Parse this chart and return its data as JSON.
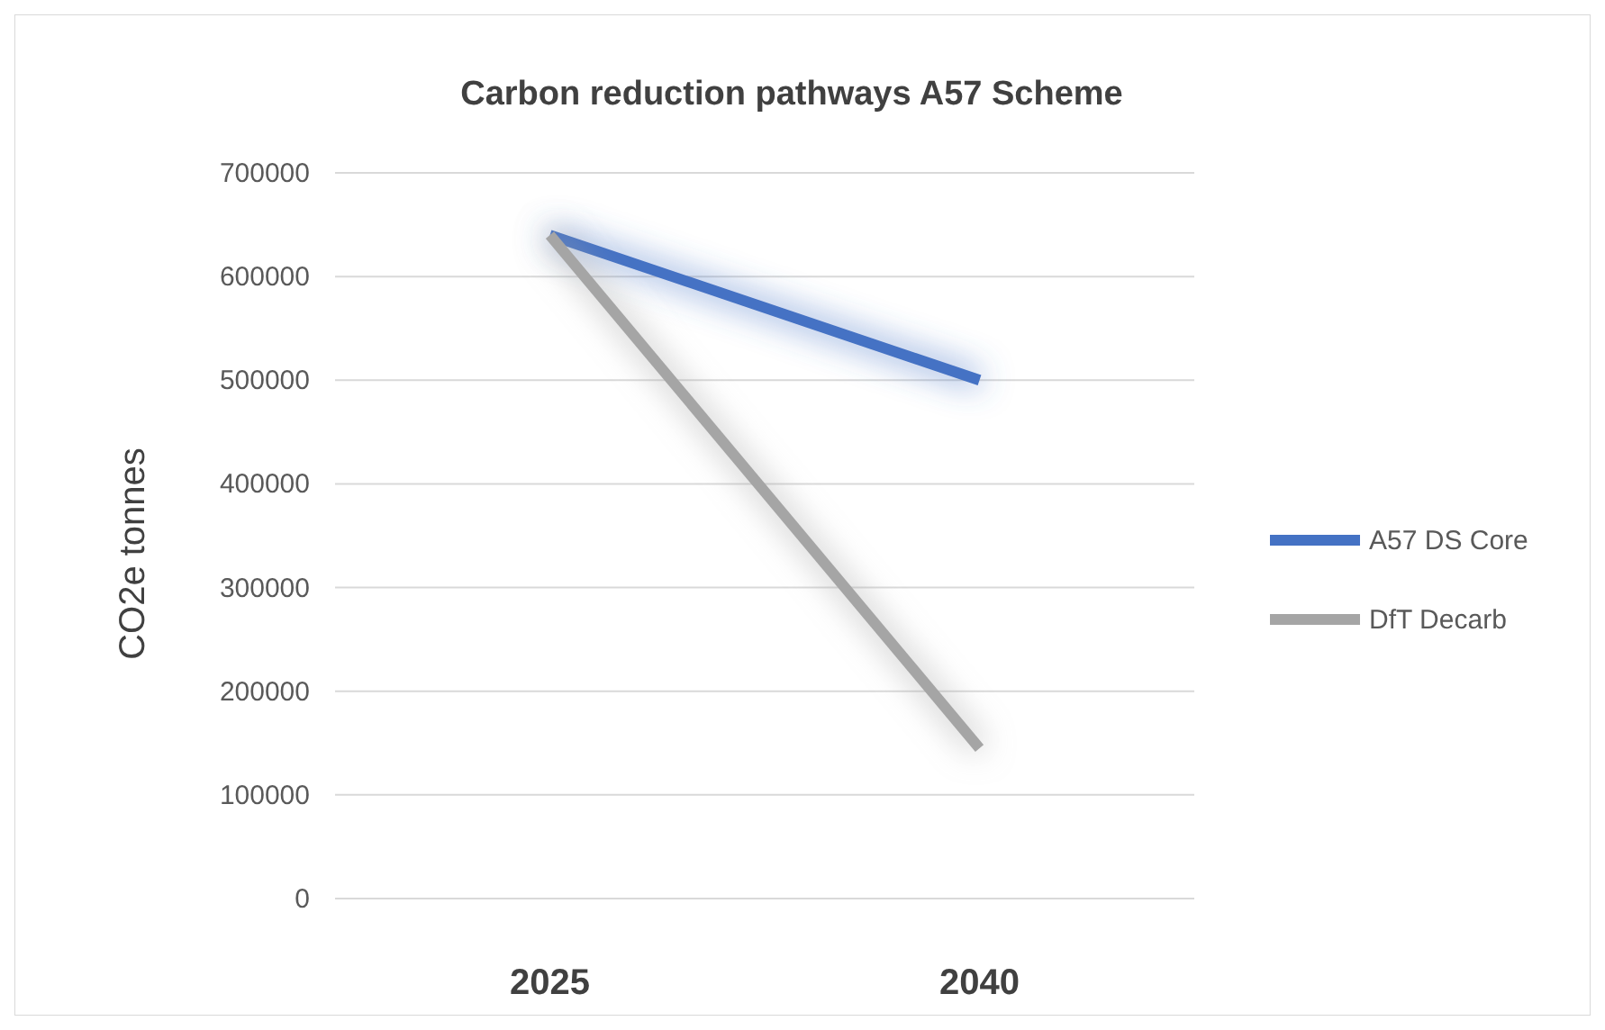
{
  "chart_data": {
    "type": "line",
    "title": "Carbon reduction pathways A57 Scheme",
    "ylabel": "CO2e tonnes",
    "categories": [
      "2025",
      "2040"
    ],
    "series": [
      {
        "name": "A57 DS Core",
        "color": "#4472c4",
        "values": [
          640000,
          500000
        ]
      },
      {
        "name": "DfT Decarb",
        "color": "#a5a5a5",
        "values": [
          640000,
          145000
        ]
      }
    ],
    "ylim": [
      0,
      700000
    ],
    "yticks": [
      0,
      100000,
      200000,
      300000,
      400000,
      500000,
      600000,
      700000
    ],
    "grid": "y",
    "legend": "right",
    "marker": "none",
    "line_style": "solid"
  }
}
